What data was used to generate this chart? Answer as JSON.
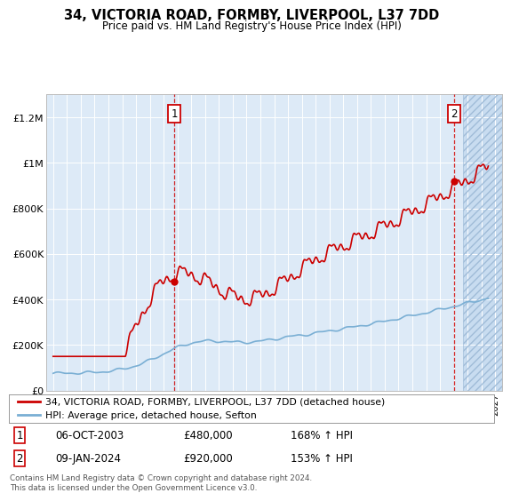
{
  "title": "34, VICTORIA ROAD, FORMBY, LIVERPOOL, L37 7DD",
  "subtitle": "Price paid vs. HM Land Registry's House Price Index (HPI)",
  "legend_line1": "34, VICTORIA ROAD, FORMBY, LIVERPOOL, L37 7DD (detached house)",
  "legend_line2": "HPI: Average price, detached house, Sefton",
  "annotation1_label": "1",
  "annotation1_date": "06-OCT-2003",
  "annotation1_price": "£480,000",
  "annotation1_hpi": "168% ↑ HPI",
  "annotation2_label": "2",
  "annotation2_date": "09-JAN-2024",
  "annotation2_price": "£920,000",
  "annotation2_hpi": "153% ↑ HPI",
  "footer": "Contains HM Land Registry data © Crown copyright and database right 2024.\nThis data is licensed under the Open Government Licence v3.0.",
  "house_color": "#cc0000",
  "hpi_color": "#7aafd4",
  "background_color": "#ddeaf7",
  "ylim": [
    0,
    1300000
  ],
  "yticks": [
    0,
    200000,
    400000,
    600000,
    800000,
    1000000,
    1200000
  ],
  "xlim_start": 1994.5,
  "xlim_end": 2027.5,
  "sale1_x": 2003.76,
  "sale1_y": 480000,
  "sale2_x": 2024.03,
  "sale2_y": 920000,
  "future_start": 2024.7
}
